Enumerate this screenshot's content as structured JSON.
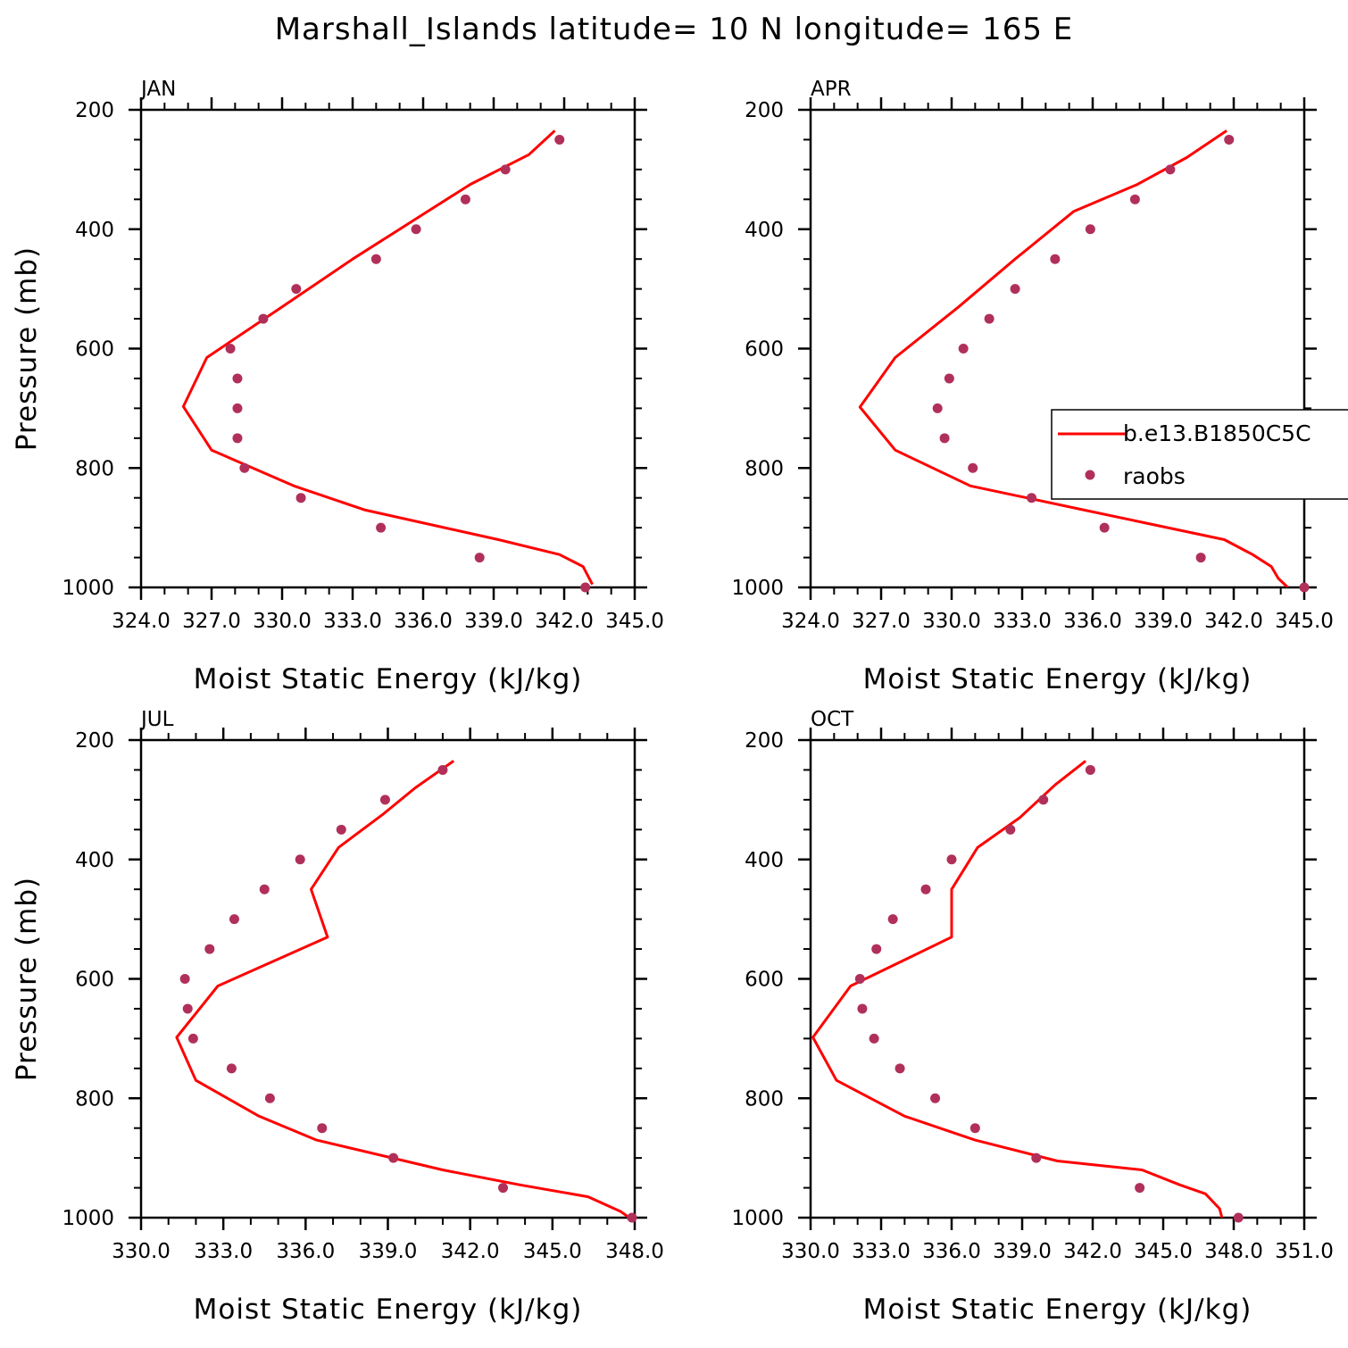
{
  "figure": {
    "title": "Marshall_Islands  latitude= 10 N longitude= 165 E"
  },
  "colors": {
    "model_line": "#ff0000",
    "obs_dots": "#b0305a",
    "axes": "#000000"
  },
  "legend": {
    "entries": [
      "b.e13.B1850C5C",
      "raobs"
    ]
  },
  "chart_data": [
    {
      "type": "line",
      "panel_title": "JAN",
      "xlabel": "Moist Static Energy (kJ/kg)",
      "ylabel": "Pressure (mb)",
      "xlim": [
        324.0,
        345.0
      ],
      "ylim": [
        1000,
        200
      ],
      "xticks": [
        324.0,
        327.0,
        330.0,
        333.0,
        336.0,
        339.0,
        342.0,
        345.0
      ],
      "xtick_labels": [
        "324.0",
        "327.0",
        "330.0",
        "333.0",
        "336.0",
        "339.0",
        "342.0",
        "345.0"
      ],
      "yticks": [
        200,
        400,
        600,
        800,
        1000
      ],
      "yticks_minor": [
        250,
        300,
        350,
        450,
        500,
        550,
        650,
        700,
        750,
        850,
        900,
        950
      ],
      "series": [
        {
          "name": "b.e13.B1850C5C",
          "kind": "line",
          "x": [
            341.6,
            340.5,
            338.0,
            335.8,
            333.0,
            330.0,
            326.8,
            325.8,
            327.0,
            330.5,
            333.5,
            339.2,
            341.8,
            342.8,
            343.2
          ],
          "y": [
            235,
            275,
            325,
            380,
            450,
            530,
            615,
            697,
            770,
            830,
            870,
            920,
            945,
            965,
            995
          ]
        },
        {
          "name": "raobs",
          "kind": "scatter",
          "x": [
            341.8,
            339.5,
            337.8,
            335.7,
            334.0,
            330.6,
            329.2,
            327.8,
            328.1,
            328.1,
            328.1,
            328.4,
            330.8,
            334.2,
            338.4,
            342.9
          ],
          "y": [
            250,
            300,
            350,
            400,
            450,
            500,
            550,
            600,
            650,
            700,
            750,
            800,
            850,
            900,
            950,
            1000
          ]
        }
      ]
    },
    {
      "type": "line",
      "panel_title": "APR",
      "xlabel": "Moist Static Energy (kJ/kg)",
      "ylabel": "",
      "xlim": [
        324.0,
        345.0
      ],
      "ylim": [
        1000,
        200
      ],
      "xticks": [
        324.0,
        327.0,
        330.0,
        333.0,
        336.0,
        339.0,
        342.0,
        345.0
      ],
      "xtick_labels": [
        "324.0",
        "327.0",
        "330.0",
        "333.0",
        "336.0",
        "339.0",
        "342.0",
        "345.0"
      ],
      "yticks": [
        200,
        400,
        600,
        800,
        1000
      ],
      "yticks_minor": [
        250,
        300,
        350,
        450,
        500,
        550,
        650,
        700,
        750,
        850,
        900,
        950
      ],
      "series": [
        {
          "name": "b.e13.B1850C5C",
          "kind": "line",
          "x": [
            341.7,
            340.0,
            337.9,
            335.2,
            332.7,
            330.3,
            327.6,
            326.1,
            327.6,
            330.8,
            335.6,
            341.6,
            342.8,
            343.6,
            343.9,
            344.3
          ],
          "y": [
            235,
            280,
            325,
            370,
            450,
            530,
            615,
            698,
            770,
            830,
            870,
            920,
            945,
            965,
            985,
            1000
          ]
        },
        {
          "name": "raobs",
          "kind": "scatter",
          "x": [
            341.8,
            339.3,
            337.8,
            335.9,
            334.4,
            332.7,
            331.6,
            330.5,
            329.9,
            329.4,
            329.7,
            330.9,
            333.4,
            336.5,
            340.6,
            345.0
          ],
          "y": [
            250,
            300,
            350,
            400,
            450,
            500,
            550,
            600,
            650,
            700,
            750,
            800,
            850,
            900,
            950,
            1000
          ]
        }
      ]
    },
    {
      "type": "line",
      "panel_title": "JUL",
      "xlabel": "Moist Static Energy (kJ/kg)",
      "ylabel": "Pressure (mb)",
      "xlim": [
        330.0,
        348.0
      ],
      "ylim": [
        1000,
        200
      ],
      "xticks": [
        330.0,
        333.0,
        336.0,
        339.0,
        342.0,
        345.0,
        348.0
      ],
      "xtick_labels": [
        "330.0",
        "333.0",
        "336.0",
        "339.0",
        "342.0",
        "345.0",
        "348.0"
      ],
      "yticks": [
        200,
        400,
        600,
        800,
        1000
      ],
      "yticks_minor": [
        250,
        300,
        350,
        450,
        500,
        550,
        650,
        700,
        750,
        850,
        900,
        950
      ],
      "series": [
        {
          "name": "b.e13.B1850C5C",
          "kind": "line",
          "x": [
            341.4,
            340.0,
            338.8,
            337.2,
            336.2,
            336.8,
            332.8,
            331.3,
            332.0,
            334.3,
            336.4,
            341.0,
            343.8,
            346.3,
            347.5,
            347.8
          ],
          "y": [
            235,
            280,
            325,
            380,
            450,
            530,
            612,
            698,
            770,
            830,
            870,
            920,
            945,
            965,
            990,
            1000
          ]
        },
        {
          "name": "raobs",
          "kind": "scatter",
          "x": [
            341.0,
            338.9,
            337.3,
            335.8,
            334.5,
            333.4,
            332.5,
            331.6,
            331.7,
            331.9,
            333.3,
            334.7,
            336.6,
            339.2,
            343.2,
            347.9
          ],
          "y": [
            250,
            300,
            350,
            400,
            450,
            500,
            550,
            600,
            650,
            700,
            750,
            800,
            850,
            900,
            950,
            1000
          ]
        }
      ]
    },
    {
      "type": "line",
      "panel_title": "OCT",
      "xlabel": "Moist Static Energy (kJ/kg)",
      "ylabel": "",
      "xlim": [
        330.0,
        351.0
      ],
      "ylim": [
        1000,
        200
      ],
      "xticks": [
        330.0,
        333.0,
        336.0,
        339.0,
        342.0,
        345.0,
        348.0,
        351.0
      ],
      "xtick_labels": [
        "330.0",
        "333.0",
        "336.0",
        "339.0",
        "342.0",
        "345.0",
        "348.0",
        "351.0"
      ],
      "yticks": [
        200,
        400,
        600,
        800,
        1000
      ],
      "yticks_minor": [
        250,
        300,
        350,
        450,
        500,
        550,
        650,
        700,
        750,
        850,
        900,
        950
      ],
      "series": [
        {
          "name": "b.e13.B1850C5C",
          "kind": "line",
          "x": [
            341.7,
            340.4,
            338.9,
            337.1,
            336.0,
            336.0,
            331.7,
            330.1,
            331.1,
            334.0,
            337.0,
            340.5,
            344.1,
            345.7,
            346.8,
            347.4,
            347.5
          ],
          "y": [
            235,
            275,
            330,
            380,
            450,
            530,
            612,
            698,
            770,
            830,
            870,
            905,
            920,
            945,
            960,
            985,
            1000
          ]
        },
        {
          "name": "raobs",
          "kind": "scatter",
          "x": [
            341.9,
            339.9,
            338.5,
            336.0,
            334.9,
            333.5,
            332.8,
            332.1,
            332.2,
            332.7,
            333.8,
            335.3,
            337.0,
            339.6,
            344.0,
            348.2
          ],
          "y": [
            250,
            300,
            350,
            400,
            450,
            500,
            550,
            600,
            650,
            700,
            750,
            800,
            850,
            900,
            950,
            1000
          ]
        }
      ]
    }
  ]
}
